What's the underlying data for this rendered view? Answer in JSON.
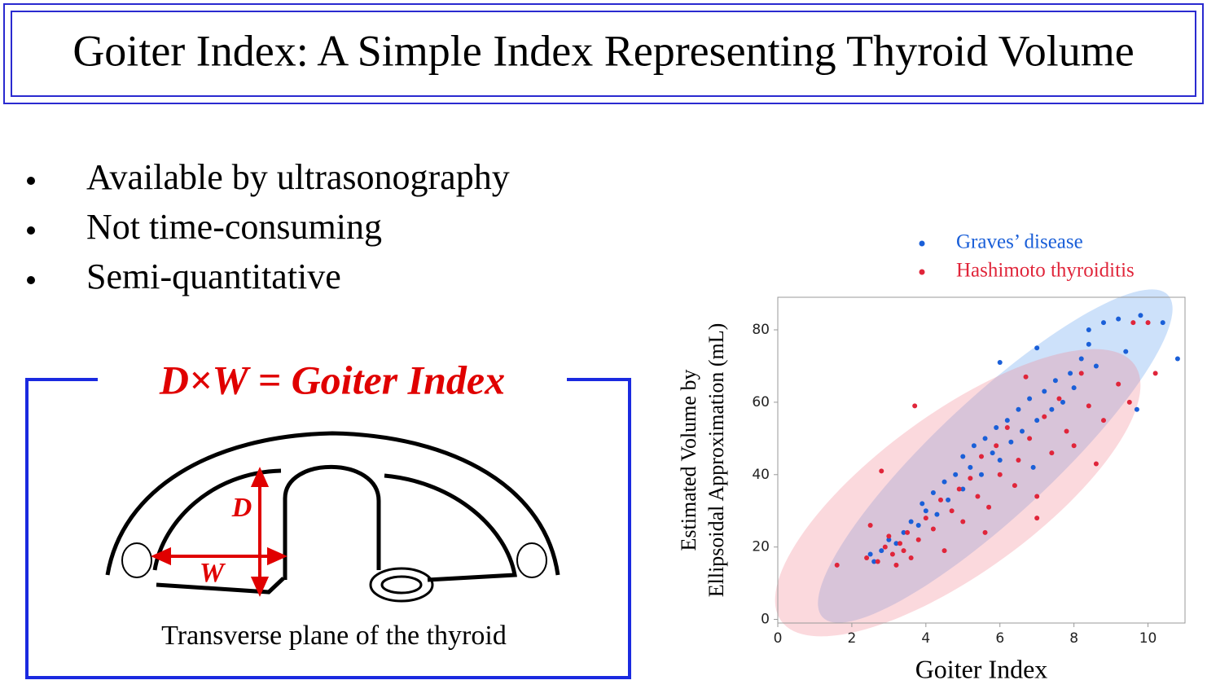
{
  "header": {
    "title": "Goiter Index: A Simple Index Representing Thyroid Volume"
  },
  "bullets": [
    "Available by ultrasonography",
    "Not time-consuming",
    "Semi-quantitative"
  ],
  "diagram": {
    "title": "D×W = Goiter Index",
    "depth_label": "D",
    "width_label": "W",
    "caption": "Transverse plane of the thyroid"
  },
  "chart_data": {
    "type": "scatter",
    "x_label": "Goiter Index",
    "y_label_lines": [
      "Estimated Volume by",
      "Ellipsoidal Approximation (mL)"
    ],
    "xlim": [
      0,
      11
    ],
    "ylim": [
      -1,
      89
    ],
    "xticks": [
      0,
      2,
      4,
      6,
      8,
      10
    ],
    "yticks": [
      0,
      20,
      40,
      60,
      80
    ],
    "series": [
      {
        "name": "Graves’ disease",
        "color": "#1a5fd8",
        "x": [
          2.5,
          2.6,
          2.8,
          3.0,
          3.2,
          3.4,
          3.6,
          3.8,
          3.9,
          4.0,
          4.2,
          4.3,
          4.5,
          4.6,
          4.8,
          5.0,
          5.0,
          5.2,
          5.3,
          5.5,
          5.6,
          5.8,
          5.9,
          6.0,
          6.0,
          6.2,
          6.3,
          6.5,
          6.6,
          6.8,
          7.0,
          7.0,
          7.2,
          7.4,
          7.5,
          7.7,
          7.9,
          8.0,
          8.2,
          8.4,
          8.4,
          8.6,
          8.8,
          9.2,
          9.4,
          9.8,
          10.4,
          10.8,
          9.7,
          6.9
        ],
        "y": [
          18,
          16,
          19,
          22,
          21,
          24,
          27,
          26,
          32,
          30,
          35,
          29,
          38,
          33,
          40,
          36,
          45,
          42,
          48,
          40,
          50,
          46,
          53,
          71,
          44,
          55,
          49,
          58,
          52,
          61,
          55,
          75,
          63,
          58,
          66,
          60,
          68,
          64,
          72,
          80,
          76,
          70,
          82,
          83,
          74,
          84,
          82,
          72,
          58,
          42
        ]
      },
      {
        "name": "Hashimoto thyroiditis",
        "color": "#e0253a",
        "x": [
          1.6,
          2.4,
          2.5,
          2.7,
          2.8,
          2.9,
          3.0,
          3.1,
          3.2,
          3.3,
          3.4,
          3.5,
          3.6,
          3.7,
          3.8,
          4.0,
          4.2,
          4.4,
          4.5,
          4.7,
          4.9,
          5.0,
          5.2,
          5.4,
          5.5,
          5.7,
          5.9,
          6.0,
          6.2,
          6.4,
          6.5,
          6.7,
          6.8,
          7.0,
          7.2,
          7.4,
          7.6,
          7.8,
          8.0,
          8.2,
          8.4,
          8.6,
          8.8,
          9.2,
          9.5,
          9.6,
          10.0,
          10.2,
          7.0,
          5.6
        ],
        "y": [
          15,
          17,
          26,
          16,
          41,
          20,
          23,
          18,
          15,
          21,
          19,
          24,
          17,
          59,
          22,
          28,
          25,
          33,
          19,
          30,
          36,
          27,
          39,
          34,
          45,
          31,
          48,
          40,
          53,
          37,
          44,
          67,
          50,
          34,
          56,
          46,
          61,
          52,
          48,
          68,
          59,
          43,
          55,
          65,
          60,
          82,
          82,
          68,
          28,
          24
        ]
      }
    ]
  }
}
